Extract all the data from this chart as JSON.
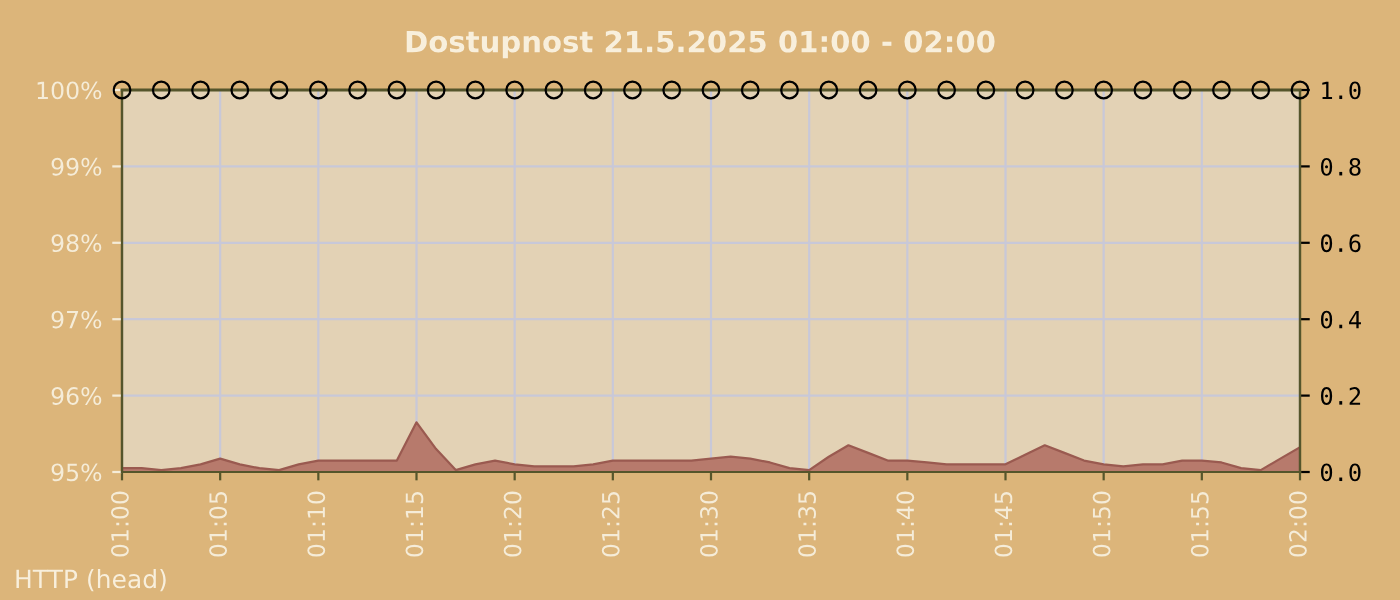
{
  "chart_data": {
    "type": "line",
    "title": "Dostupnost 21.5.2025 01:00 - 02:00",
    "xlim": [
      "2025-05-21T01:00",
      "2025-05-21T02:00"
    ],
    "xticks": [
      {
        "value": "2025-05-21T01:00",
        "label": "01:00"
      },
      {
        "value": "2025-05-21T01:05",
        "label": "01:05"
      },
      {
        "value": "2025-05-21T01:10",
        "label": "01:10"
      },
      {
        "value": "2025-05-21T01:15",
        "label": "01:15"
      },
      {
        "value": "2025-05-21T01:20",
        "label": "01:20"
      },
      {
        "value": "2025-05-21T01:25",
        "label": "01:25"
      },
      {
        "value": "2025-05-21T01:30",
        "label": "01:30"
      },
      {
        "value": "2025-05-21T01:35",
        "label": "01:35"
      },
      {
        "value": "2025-05-21T01:40",
        "label": "01:40"
      },
      {
        "value": "2025-05-21T01:45",
        "label": "01:45"
      },
      {
        "value": "2025-05-21T01:50",
        "label": "01:50"
      },
      {
        "value": "2025-05-21T01:55",
        "label": "01:55"
      },
      {
        "value": "2025-05-21T02:00",
        "label": "02:00"
      }
    ],
    "ylim": [
      95,
      100
    ],
    "yticks": [
      {
        "value": 95,
        "label": "95%"
      },
      {
        "value": 96,
        "label": "96%"
      },
      {
        "value": 97,
        "label": "97%"
      },
      {
        "value": 98,
        "label": "98%"
      },
      {
        "value": 99,
        "label": "99%"
      },
      {
        "value": 100,
        "label": "100%"
      }
    ],
    "y2lim": [
      0,
      1
    ],
    "y2ticks": [
      {
        "value": 0,
        "label": "0.0"
      },
      {
        "value": 0.2,
        "label": "0.2"
      },
      {
        "value": 0.4,
        "label": "0.4"
      },
      {
        "value": 0.6,
        "label": "0.6"
      },
      {
        "value": 0.8,
        "label": "0.8"
      },
      {
        "value": 1,
        "label": "1.0"
      }
    ],
    "grid": true,
    "legend": false,
    "series": [
      {
        "type": "area",
        "axis": "y2",
        "color": "#b77a6c",
        "x": [
          "2025-05-21T01:00",
          "2025-05-21T01:01",
          "2025-05-21T01:02",
          "2025-05-21T01:03",
          "2025-05-21T01:04",
          "2025-05-21T01:05",
          "2025-05-21T01:06",
          "2025-05-21T01:07",
          "2025-05-21T01:08",
          "2025-05-21T01:09",
          "2025-05-21T01:10",
          "2025-05-21T01:11",
          "2025-05-21T01:12",
          "2025-05-21T01:13",
          "2025-05-21T01:14",
          "2025-05-21T01:15",
          "2025-05-21T01:16",
          "2025-05-21T01:17",
          "2025-05-21T01:18",
          "2025-05-21T01:19",
          "2025-05-21T01:20",
          "2025-05-21T01:21",
          "2025-05-21T01:22",
          "2025-05-21T01:23",
          "2025-05-21T01:24",
          "2025-05-21T01:25",
          "2025-05-21T01:26",
          "2025-05-21T01:27",
          "2025-05-21T01:28",
          "2025-05-21T01:29",
          "2025-05-21T01:30",
          "2025-05-21T01:31",
          "2025-05-21T01:32",
          "2025-05-21T01:33",
          "2025-05-21T01:34",
          "2025-05-21T01:35",
          "2025-05-21T01:36",
          "2025-05-21T01:37",
          "2025-05-21T01:38",
          "2025-05-21T01:39",
          "2025-05-21T01:40",
          "2025-05-21T01:41",
          "2025-05-21T01:42",
          "2025-05-21T01:43",
          "2025-05-21T01:44",
          "2025-05-21T01:45",
          "2025-05-21T01:46",
          "2025-05-21T01:47",
          "2025-05-21T01:48",
          "2025-05-21T01:49",
          "2025-05-21T01:50",
          "2025-05-21T01:51",
          "2025-05-21T01:52",
          "2025-05-21T01:53",
          "2025-05-21T01:54",
          "2025-05-21T01:55",
          "2025-05-21T01:56",
          "2025-05-21T01:57",
          "2025-05-21T01:58",
          "2025-05-21T01:59",
          "2025-05-21T02:00"
        ],
        "values": [
          0.01,
          0.01,
          0.005,
          0.01,
          0.02,
          0.035,
          0.02,
          0.01,
          0.005,
          0.02,
          0.03,
          0.03,
          0.03,
          0.03,
          0.03,
          0.13,
          0.06,
          0.005,
          0.02,
          0.03,
          0.02,
          0.015,
          0.015,
          0.015,
          0.02,
          0.03,
          0.03,
          0.03,
          0.03,
          0.03,
          0.035,
          0.04,
          0.035,
          0.025,
          0.01,
          0.005,
          0.04,
          0.07,
          0.05,
          0.03,
          0.03,
          0.025,
          0.02,
          0.02,
          0.02,
          0.02,
          0.045,
          0.07,
          0.05,
          0.03,
          0.02,
          0.015,
          0.02,
          0.02,
          0.03,
          0.03,
          0.025,
          0.01,
          0.005,
          0.035,
          0.065
        ]
      },
      {
        "color": "#55552b",
        "marker": "circle",
        "x": [
          "2025-05-21T01:00",
          "2025-05-21T01:02",
          "2025-05-21T01:04",
          "2025-05-21T01:06",
          "2025-05-21T01:08",
          "2025-05-21T01:10",
          "2025-05-21T01:12",
          "2025-05-21T01:14",
          "2025-05-21T01:16",
          "2025-05-21T01:18",
          "2025-05-21T01:20",
          "2025-05-21T01:22",
          "2025-05-21T01:24",
          "2025-05-21T01:26",
          "2025-05-21T01:28",
          "2025-05-21T01:30",
          "2025-05-21T01:32",
          "2025-05-21T01:34",
          "2025-05-21T01:36",
          "2025-05-21T01:38",
          "2025-05-21T01:40",
          "2025-05-21T01:42",
          "2025-05-21T01:44",
          "2025-05-21T01:46",
          "2025-05-21T01:48",
          "2025-05-21T01:50",
          "2025-05-21T01:52",
          "2025-05-21T01:54",
          "2025-05-21T01:56",
          "2025-05-21T01:58",
          "2025-05-21T02:00"
        ],
        "values": [
          100,
          100,
          100,
          100,
          100,
          100,
          100,
          100,
          100,
          100,
          100,
          100,
          100,
          100,
          100,
          100,
          100,
          100,
          100,
          100,
          100,
          100,
          100,
          100,
          100,
          100,
          100,
          100,
          100,
          100,
          100
        ]
      }
    ],
    "annotations": [
      "HTTP (head)"
    ]
  }
}
